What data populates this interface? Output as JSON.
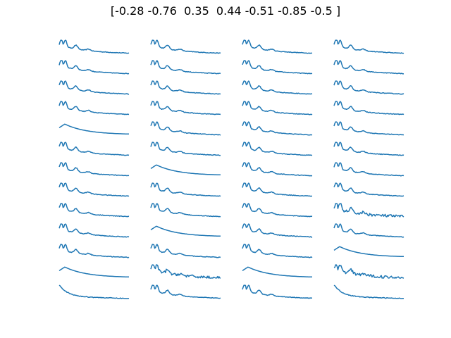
{
  "chart_data": {
    "type": "line",
    "title": "[-0.28 -0.76  0.35  0.44 -0.51 -0.85 -0.5 ]",
    "layout": {
      "rows": 13,
      "cols": 4
    },
    "line_color": "#1f77b4",
    "axes_visible": false,
    "panels": [
      {
        "profile": "peaks"
      },
      {
        "profile": "peaks"
      },
      {
        "profile": "peaks"
      },
      {
        "profile": "peaks"
      },
      {
        "profile": "peaks"
      },
      {
        "profile": "peaks"
      },
      {
        "profile": "peaks"
      },
      {
        "profile": "peaks"
      },
      {
        "profile": "peaks"
      },
      {
        "profile": "peaks"
      },
      {
        "profile": "peaks"
      },
      {
        "profile": "peaks"
      },
      {
        "profile": "peaks"
      },
      {
        "profile": "peaks"
      },
      {
        "profile": "peaks"
      },
      {
        "profile": "peaks"
      },
      {
        "profile": "smooth"
      },
      {
        "profile": "peaks"
      },
      {
        "profile": "peaks"
      },
      {
        "profile": "peaks"
      },
      {
        "profile": "peaks"
      },
      {
        "profile": "peaks"
      },
      {
        "profile": "peaks"
      },
      {
        "profile": "peaks"
      },
      {
        "profile": "peaks"
      },
      {
        "profile": "smooth"
      },
      {
        "profile": "peaks"
      },
      {
        "profile": "peaks"
      },
      {
        "profile": "peaks"
      },
      {
        "profile": "peaks"
      },
      {
        "profile": "peaks"
      },
      {
        "profile": "peaks"
      },
      {
        "profile": "peaks"
      },
      {
        "profile": "peaks"
      },
      {
        "profile": "peaks"
      },
      {
        "profile": "noisy"
      },
      {
        "profile": "peaks"
      },
      {
        "profile": "smooth"
      },
      {
        "profile": "peaks"
      },
      {
        "profile": "peaks"
      },
      {
        "profile": "peaks"
      },
      {
        "profile": "peaks"
      },
      {
        "profile": "peaks"
      },
      {
        "profile": "smooth"
      },
      {
        "profile": "smooth"
      },
      {
        "profile": "noisy"
      },
      {
        "profile": "smooth"
      },
      {
        "profile": "noisy"
      },
      {
        "profile": "decay"
      },
      {
        "profile": "peaks"
      },
      {
        "profile": "peaks"
      },
      {
        "profile": "decay"
      }
    ]
  }
}
